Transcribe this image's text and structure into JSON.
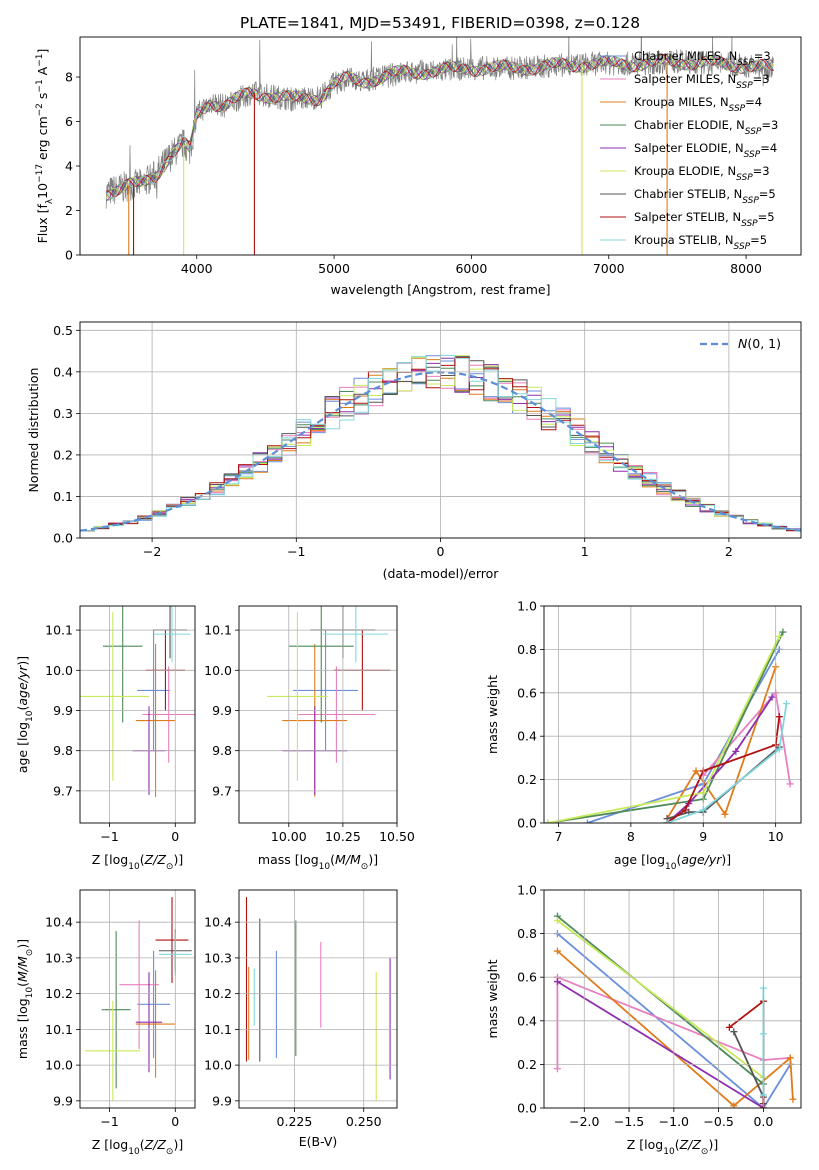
{
  "figure": {
    "title": "PLATE=1841, MJD=53491, FIBERID=0398, z=0.128"
  },
  "colors": {
    "Chabrier MILES": "#6a8fdc",
    "Salpeter MILES": "#e87fbf",
    "Kroupa MILES": "#e07b1a",
    "Chabrier ELODIE": "#4e8a5a",
    "Salpeter ELODIE": "#8e2fb0",
    "Kroupa ELODIE": "#c8ea5a",
    "Chabrier STELIB": "#555555",
    "Salpeter STELIB": "#b01010",
    "Kroupa STELIB": "#80d8dc",
    "data": "#808080",
    "normal": "#5b8fd8"
  },
  "chart_data": [
    {
      "id": "spectrum",
      "type": "line",
      "xlabel": "wavelength [Angstrom, rest frame]",
      "ylabel": "Flux [f_λ 10^-17 erg cm^-2 s^-1 A^-1]",
      "xlim": [
        3150,
        8400
      ],
      "ylim": [
        0,
        9.8
      ],
      "xticks": [
        4000,
        5000,
        6000,
        7000,
        8000
      ],
      "yticks": [
        0,
        2,
        4,
        6,
        8
      ],
      "grid": false,
      "legend_position": "top-right",
      "legend": [
        {
          "name": "Chabrier MILES",
          "label": "Chabrier MILES, N_SSP=3"
        },
        {
          "name": "Salpeter MILES",
          "label": "Salpeter MILES, N_SSP=3"
        },
        {
          "name": "Kroupa MILES",
          "label": "Kroupa MILES, N_SSP=4"
        },
        {
          "name": "Chabrier ELODIE",
          "label": "Chabrier ELODIE, N_SSP=3"
        },
        {
          "name": "Salpeter ELODIE",
          "label": "Salpeter ELODIE, N_SSP=4"
        },
        {
          "name": "Kroupa ELODIE",
          "label": "Kroupa ELODIE, N_SSP=3"
        },
        {
          "name": "Chabrier STELIB",
          "label": "Chabrier STELIB, N_SSP=5"
        },
        {
          "name": "Salpeter STELIB",
          "label": "Salpeter STELIB, N_SSP=5"
        },
        {
          "name": "Kroupa STELIB",
          "label": "Kroupa STELIB, N_SSP=5"
        }
      ],
      "continuum_wavelength": [
        3340,
        3500,
        3600,
        3700,
        3800,
        3900,
        3950,
        4000,
        4100,
        4200,
        4300,
        4400,
        4500,
        4700,
        4900,
        5000,
        5100,
        5200,
        5500,
        5800,
        6000,
        6300,
        6600,
        6900,
        7200,
        7500,
        7800,
        8200
      ],
      "continuum_flux": [
        2.8,
        3.1,
        3.2,
        3.6,
        4.4,
        5.0,
        4.7,
        6.3,
        6.9,
        6.7,
        7.0,
        7.3,
        7.2,
        7.0,
        7.1,
        7.7,
        7.9,
        7.8,
        8.2,
        8.3,
        8.4,
        8.4,
        8.5,
        8.6,
        8.6,
        8.7,
        8.6,
        8.4
      ],
      "model_wavelength": [
        3340,
        8200
      ],
      "observed_noise": 0.55
    },
    {
      "id": "residuals",
      "type": "histogram",
      "xlabel": "(data-model)/error",
      "ylabel": "Normed distribution",
      "xlim": [
        -2.5,
        2.5
      ],
      "ylim": [
        0,
        0.52
      ],
      "xticks": [
        -2,
        -1,
        0,
        1,
        2
      ],
      "yticks": [
        0.0,
        0.1,
        0.2,
        0.3,
        0.4,
        0.5
      ],
      "grid": true,
      "legend_position": "top-right",
      "legend": [
        {
          "name": "normal",
          "label": "N(0, 1)"
        }
      ],
      "bin_width": 0.1,
      "scatter_amplitude": 0.045,
      "series_order": [
        "Chabrier MILES",
        "Salpeter MILES",
        "Kroupa MILES",
        "Chabrier ELODIE",
        "Salpeter ELODIE",
        "Kroupa ELODIE",
        "Chabrier STELIB",
        "Salpeter STELIB",
        "Kroupa STELIB"
      ]
    },
    {
      "id": "age_vs_Z",
      "type": "errorbar",
      "xlabel": "Z [log10(Z/Z_sun)]",
      "ylabel": "age [log10(age/yr)]",
      "xlim": [
        -1.45,
        0.3
      ],
      "ylim": [
        9.62,
        10.16
      ],
      "xticks": [
        -1,
        0
      ],
      "yticks": [
        9.7,
        9.8,
        9.9,
        10.0,
        10.1
      ],
      "grid": true,
      "points": [
        {
          "series": "Chabrier MILES",
          "x": -0.33,
          "xerr": 0.25,
          "y": 9.95,
          "yerr": 0.15
        },
        {
          "series": "Salpeter MILES",
          "x": -0.1,
          "xerr": 0.4,
          "y": 9.89,
          "yerr": 0.12
        },
        {
          "series": "Kroupa MILES",
          "x": -0.3,
          "xerr": 0.3,
          "y": 9.875,
          "yerr": 0.19
        },
        {
          "series": "Chabrier ELODIE",
          "x": -0.8,
          "xerr": 0.3,
          "y": 10.06,
          "yerr": 0.19
        },
        {
          "series": "Salpeter ELODIE",
          "x": -0.4,
          "xerr": 0.25,
          "y": 9.8,
          "yerr": 0.11
        },
        {
          "series": "Kroupa ELODIE",
          "x": -0.95,
          "xerr": 0.55,
          "y": 9.935,
          "yerr": 0.21
        },
        {
          "series": "Chabrier STELIB",
          "x": -0.08,
          "xerr": 0.26,
          "y": 10.1,
          "yerr": 0.07
        },
        {
          "series": "Salpeter STELIB",
          "x": -0.15,
          "xerr": 0.3,
          "y": 10.0,
          "yerr": 0.1
        },
        {
          "series": "Kroupa STELIB",
          "x": -0.05,
          "xerr": 0.28,
          "y": 10.09,
          "yerr": 0.07
        }
      ]
    },
    {
      "id": "age_vs_mass",
      "type": "errorbar",
      "xlabel": "mass [log10(M/M_sun)]",
      "ylabel": "",
      "xlim": [
        9.77,
        10.5
      ],
      "ylim": [
        9.62,
        10.16
      ],
      "xticks": [
        10.0,
        10.25,
        10.5
      ],
      "xticklabels": [
        "10.00",
        "10.25",
        "10.50"
      ],
      "yticks": [
        9.7,
        9.8,
        9.9,
        10.0,
        10.1
      ],
      "grid": true,
      "points": [
        {
          "series": "Chabrier MILES",
          "x": 10.17,
          "xerr": 0.15,
          "y": 9.95,
          "yerr": 0.15
        },
        {
          "series": "Salpeter MILES",
          "x": 10.22,
          "xerr": 0.18,
          "y": 9.89,
          "yerr": 0.12
        },
        {
          "series": "Kroupa MILES",
          "x": 10.12,
          "xerr": 0.15,
          "y": 9.875,
          "yerr": 0.19
        },
        {
          "series": "Chabrier ELODIE",
          "x": 10.15,
          "xerr": 0.15,
          "y": 10.06,
          "yerr": 0.19
        },
        {
          "series": "Salpeter ELODIE",
          "x": 10.12,
          "xerr": 0.15,
          "y": 9.8,
          "yerr": 0.11
        },
        {
          "series": "Kroupa ELODIE",
          "x": 10.04,
          "xerr": 0.14,
          "y": 9.935,
          "yerr": 0.21
        },
        {
          "series": "Chabrier STELIB",
          "x": 10.25,
          "xerr": 0.15,
          "y": 10.1,
          "yerr": 0.07
        },
        {
          "series": "Salpeter STELIB",
          "x": 10.34,
          "xerr": 0.13,
          "y": 10.0,
          "yerr": 0.1
        },
        {
          "series": "Kroupa STELIB",
          "x": 10.31,
          "xerr": 0.15,
          "y": 10.09,
          "yerr": 0.07
        }
      ]
    },
    {
      "id": "weight_vs_age",
      "type": "line",
      "xlabel": "age [log10(age/yr)]",
      "ylabel": "mass weight",
      "xlim": [
        6.8,
        10.35
      ],
      "ylim": [
        0,
        1.0
      ],
      "xticks": [
        7,
        8,
        9,
        10
      ],
      "yticks": [
        0.0,
        0.2,
        0.4,
        0.6,
        0.8,
        1.0
      ],
      "grid": true,
      "series": [
        {
          "name": "Chabrier MILES",
          "x": [
            7.4,
            9.0,
            10.05
          ],
          "y": [
            0.0,
            0.18,
            0.8
          ]
        },
        {
          "name": "Salpeter MILES",
          "x": [
            9.0,
            10.0,
            10.2
          ],
          "y": [
            0.22,
            0.6,
            0.18
          ]
        },
        {
          "name": "Kroupa MILES",
          "x": [
            8.5,
            8.9,
            9.3,
            10.0
          ],
          "y": [
            0.02,
            0.24,
            0.04,
            0.72
          ]
        },
        {
          "name": "Chabrier ELODIE",
          "x": [
            6.85,
            9.0,
            10.1
          ],
          "y": [
            0.0,
            0.11,
            0.88
          ]
        },
        {
          "name": "Salpeter ELODIE",
          "x": [
            8.5,
            8.8,
            9.45,
            9.95
          ],
          "y": [
            0.0,
            0.09,
            0.33,
            0.58
          ]
        },
        {
          "name": "Kroupa ELODIE",
          "x": [
            6.85,
            9.0,
            10.05
          ],
          "y": [
            0.0,
            0.14,
            0.86
          ]
        },
        {
          "name": "Chabrier STELIB",
          "x": [
            8.5,
            8.8,
            9.0,
            10.05
          ],
          "y": [
            0.02,
            0.05,
            0.05,
            0.35
          ]
        },
        {
          "name": "Salpeter STELIB",
          "x": [
            8.5,
            8.75,
            9.0,
            10.0,
            10.05
          ],
          "y": [
            0.0,
            0.06,
            0.24,
            0.36,
            0.49
          ]
        },
        {
          "name": "Kroupa STELIB",
          "x": [
            8.5,
            9.0,
            10.05,
            10.15
          ],
          "y": [
            0.0,
            0.06,
            0.34,
            0.55
          ]
        }
      ]
    },
    {
      "id": "mass_vs_Z",
      "type": "errorbar",
      "xlabel": "Z [log10(Z/Z_sun)]",
      "ylabel": "mass [log10(M/M_sun)]",
      "xlim": [
        -1.45,
        0.3
      ],
      "ylim": [
        9.88,
        10.49
      ],
      "xticks": [
        -1,
        0
      ],
      "yticks": [
        9.9,
        10.0,
        10.1,
        10.2,
        10.3,
        10.4
      ],
      "grid": true,
      "points": [
        {
          "series": "Chabrier MILES",
          "x": -0.33,
          "xerr": 0.25,
          "y": 10.17,
          "yerr": 0.15
        },
        {
          "series": "Salpeter MILES",
          "x": -0.55,
          "xerr": 0.3,
          "y": 10.225,
          "yerr": 0.18
        },
        {
          "series": "Kroupa MILES",
          "x": -0.3,
          "xerr": 0.3,
          "y": 10.115,
          "yerr": 0.15
        },
        {
          "series": "Chabrier ELODIE",
          "x": -0.9,
          "xerr": 0.22,
          "y": 10.155,
          "yerr": 0.22
        },
        {
          "series": "Salpeter ELODIE",
          "x": -0.4,
          "xerr": 0.2,
          "y": 10.12,
          "yerr": 0.14
        },
        {
          "series": "Kroupa ELODIE",
          "x": -0.95,
          "xerr": 0.42,
          "y": 10.04,
          "yerr": 0.14
        },
        {
          "series": "Chabrier STELIB",
          "x": 0.0,
          "xerr": 0.25,
          "y": 10.32,
          "yerr": 0.06
        },
        {
          "series": "Salpeter STELIB",
          "x": -0.05,
          "xerr": 0.25,
          "y": 10.35,
          "yerr": 0.12
        },
        {
          "series": "Kroupa STELIB",
          "x": 0.0,
          "xerr": 0.25,
          "y": 10.31,
          "yerr": 0.06
        }
      ]
    },
    {
      "id": "mass_vs_EBV",
      "type": "errorbar",
      "xlabel": "E(B-V)",
      "ylabel": "",
      "xlim": [
        0.205,
        0.262
      ],
      "ylim": [
        9.88,
        10.49
      ],
      "xticks": [
        0.225,
        0.25
      ],
      "xticklabels": [
        "0.225",
        "0.250"
      ],
      "yticks": [
        9.9,
        10.0,
        10.1,
        10.2,
        10.3,
        10.4
      ],
      "grid": true,
      "points": [
        {
          "series": "Chabrier MILES",
          "x": 0.2185,
          "xerr": 0,
          "y": 10.17,
          "yerr": 0.15
        },
        {
          "series": "Salpeter MILES",
          "x": 0.2345,
          "xerr": 0,
          "y": 10.225,
          "yerr": 0.12
        },
        {
          "series": "Kroupa MILES",
          "x": 0.2085,
          "xerr": 0,
          "y": 10.145,
          "yerr": 0.13
        },
        {
          "series": "Chabrier ELODIE",
          "x": 0.2255,
          "xerr": 0,
          "y": 10.215,
          "yerr": 0.19
        },
        {
          "series": "Salpeter ELODIE",
          "x": 0.2595,
          "xerr": 0,
          "y": 10.13,
          "yerr": 0.17
        },
        {
          "series": "Kroupa ELODIE",
          "x": 0.2545,
          "xerr": 0,
          "y": 10.08,
          "yerr": 0.18
        },
        {
          "series": "Chabrier STELIB",
          "x": 0.2125,
          "xerr": 0,
          "y": 10.21,
          "yerr": 0.2
        },
        {
          "series": "Salpeter STELIB",
          "x": 0.2077,
          "xerr": 0,
          "y": 10.24,
          "yerr": 0.23
        },
        {
          "series": "Kroupa STELIB",
          "x": 0.2105,
          "xerr": 0,
          "y": 10.19,
          "yerr": 0.08
        }
      ]
    },
    {
      "id": "weight_vs_Z",
      "type": "line",
      "xlabel": "Z [log10(Z/Z_sun)]",
      "ylabel": "mass weight",
      "xlim": [
        -2.45,
        0.42
      ],
      "ylim": [
        0,
        1.0
      ],
      "xticks": [
        -2.0,
        -1.5,
        -1.0,
        -0.5,
        0.0
      ],
      "xticklabels": [
        "−2.0",
        "−1.5",
        "−1.0",
        "−0.5",
        "0.0"
      ],
      "yticks": [
        0.0,
        0.2,
        0.4,
        0.6,
        0.8,
        1.0
      ],
      "grid": true,
      "series": [
        {
          "name": "Chabrier MILES",
          "x": [
            -2.3,
            0.0,
            0.3
          ],
          "y": [
            0.8,
            0.0,
            0.2
          ]
        },
        {
          "name": "Salpeter MILES",
          "x": [
            -2.3,
            -2.3,
            0.0,
            0.3
          ],
          "y": [
            0.18,
            0.6,
            0.22,
            0.23
          ]
        },
        {
          "name": "Kroupa MILES",
          "x": [
            -2.3,
            -0.33,
            0.3,
            0.33
          ],
          "y": [
            0.72,
            0.01,
            0.23,
            0.04
          ]
        },
        {
          "name": "Chabrier ELODIE",
          "x": [
            -2.3,
            0.0
          ],
          "y": [
            0.88,
            0.11
          ]
        },
        {
          "name": "Salpeter ELODIE",
          "x": [
            -2.3,
            0.0
          ],
          "y": [
            0.58,
            0.0
          ]
        },
        {
          "name": "Kroupa ELODIE",
          "x": [
            -2.3,
            0.0
          ],
          "y": [
            0.86,
            0.14
          ]
        },
        {
          "name": "Chabrier STELIB",
          "x": [
            -0.33,
            0.0,
            0.0
          ],
          "y": [
            0.35,
            0.05,
            0.02
          ]
        },
        {
          "name": "Salpeter STELIB",
          "x": [
            -0.38,
            0.0,
            0.0
          ],
          "y": [
            0.37,
            0.49,
            0.0
          ]
        },
        {
          "name": "Kroupa STELIB",
          "x": [
            0.0,
            0.0,
            0.0
          ],
          "y": [
            0.55,
            0.34,
            0.06
          ]
        }
      ]
    }
  ]
}
